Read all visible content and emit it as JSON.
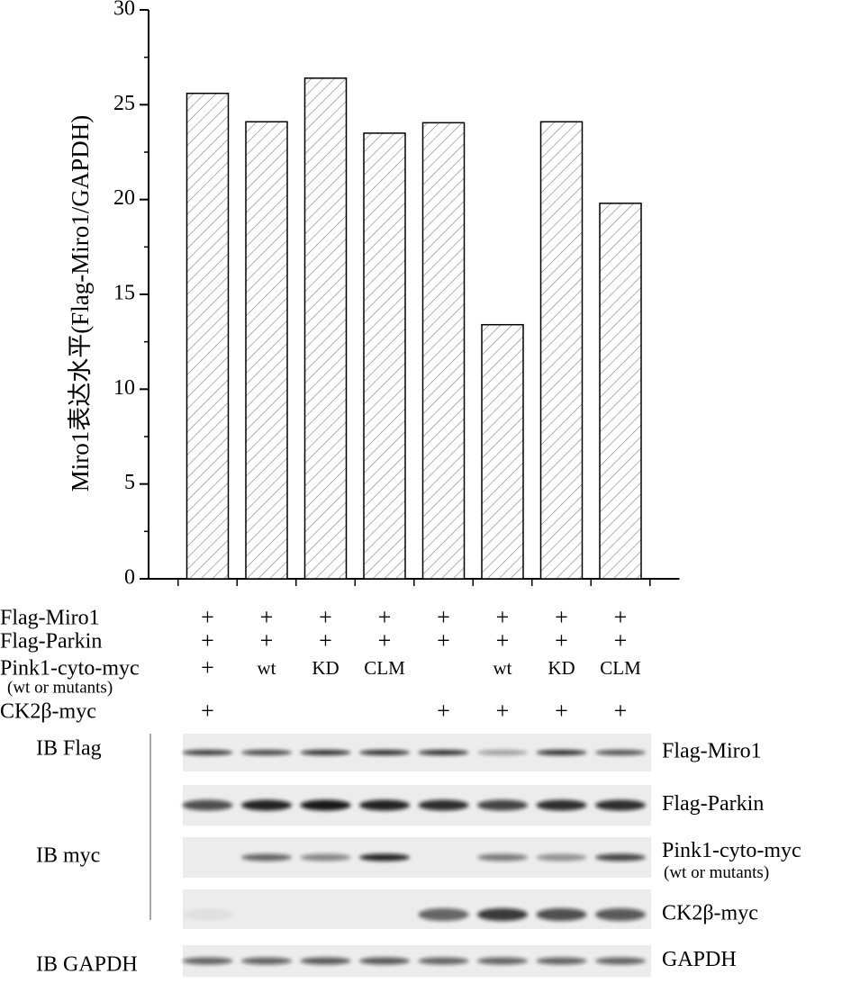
{
  "chart_data": {
    "type": "bar",
    "y_label": "Miro1表达水平(Flag-Miro1/GAPDH)",
    "values": [
      25.6,
      24.1,
      26.4,
      23.5,
      24.05,
      13.4,
      24.1,
      19.8
    ],
    "color": "#808080",
    "ylim": [
      0,
      30
    ],
    "yticks": [
      0,
      5,
      10,
      15,
      20,
      25,
      30
    ]
  },
  "conditions": {
    "rows": [
      {
        "label": "Flag-Miro1",
        "cells": [
          "+",
          "+",
          "+",
          "+",
          "+",
          "+",
          "+",
          "+"
        ]
      },
      {
        "label": "Flag-Parkin",
        "cells": [
          "+",
          "+",
          "+",
          "+",
          "+",
          "+",
          "+",
          "+"
        ]
      },
      {
        "label": "Pink1-cyto-myc",
        "note": "(wt or mutants)",
        "cells": [
          "+",
          "wt",
          "KD",
          "CLM",
          null,
          "wt",
          "KD",
          "CLM"
        ]
      },
      {
        "label": "CK2β-myc",
        "cells": [
          "+",
          null,
          null,
          null,
          "+",
          "+",
          "+",
          "+"
        ]
      }
    ]
  },
  "blot": {
    "groups": [
      "IB Flag",
      "IB myc",
      "IB GAPDH"
    ],
    "bands": [
      {
        "label": "Flag-Miro1"
      },
      {
        "label": "Flag-Parkin"
      },
      {
        "label": "Pink1-cyto-myc",
        "note": "(wt or mutants)"
      },
      {
        "label": "CK2β-myc"
      },
      {
        "label": "GAPDH"
      }
    ]
  }
}
